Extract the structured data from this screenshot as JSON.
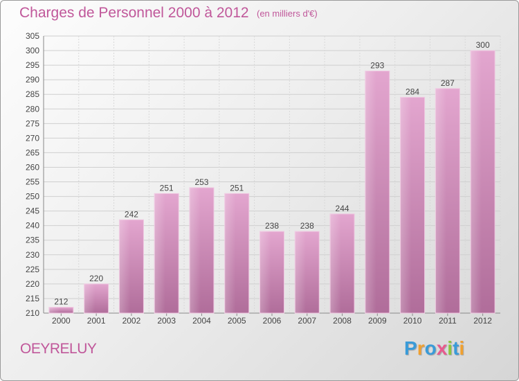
{
  "header": {
    "title": "Charges de Personnel 2000 à 2012",
    "subtitle": "(en milliers d'€)"
  },
  "footer": {
    "place": "OEYRELUY",
    "logo": [
      "P",
      "r",
      "o",
      "x",
      "i",
      "t",
      "i"
    ],
    "logo_colors": [
      "#3a9bd8",
      "#f0a030",
      "#3a9bd8",
      "#e85a8e",
      "#8cc63f",
      "#3a9bd8",
      "#f0a030"
    ]
  },
  "chart_data": {
    "type": "bar",
    "title": "Charges de Personnel 2000 à 2012",
    "subtitle": "(en milliers d'€)",
    "categories": [
      "2000",
      "2001",
      "2002",
      "2003",
      "2004",
      "2005",
      "2006",
      "2007",
      "2008",
      "2009",
      "2010",
      "2011",
      "2012"
    ],
    "values": [
      212,
      220,
      242,
      251,
      253,
      251,
      238,
      238,
      244,
      293,
      284,
      287,
      300
    ],
    "ylim": [
      210,
      305
    ],
    "yticks": [
      210,
      215,
      220,
      225,
      230,
      235,
      240,
      245,
      250,
      255,
      260,
      265,
      270,
      275,
      280,
      285,
      290,
      295,
      300,
      305
    ],
    "grid": true,
    "bar_color": "#d98fbd"
  }
}
